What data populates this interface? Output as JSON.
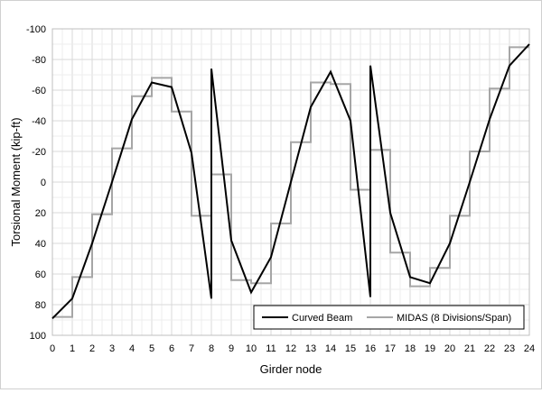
{
  "chart_data": {
    "type": "line",
    "title": "",
    "xlabel": "Girder node",
    "ylabel": "Torsional Moment (kip-ft)",
    "xlim": [
      0,
      24
    ],
    "ylim": [
      100,
      -100
    ],
    "y_axis_reversed": true,
    "x_ticks": [
      "0",
      "1",
      "2",
      "3",
      "4",
      "5",
      "6",
      "7",
      "8",
      "9",
      "10",
      "11",
      "12",
      "13",
      "14",
      "15",
      "16",
      "17",
      "18",
      "19",
      "20",
      "21",
      "22",
      "23",
      "24"
    ],
    "y_ticks": [
      "-100",
      "-80",
      "-60",
      "-40",
      "-20",
      "0",
      "20",
      "40",
      "60",
      "80",
      "100"
    ],
    "grid": true,
    "legend_position": "bottom-right",
    "series": [
      {
        "name": "Curved Beam",
        "color": "#000000",
        "x": [
          0,
          1,
          2,
          3,
          4,
          5,
          6,
          7,
          8,
          8,
          9,
          10,
          11,
          12,
          13,
          14,
          15,
          16,
          16,
          17,
          18,
          19,
          20,
          21,
          22,
          23,
          24
        ],
        "y": [
          89,
          76,
          40,
          0,
          -41,
          -65,
          -62,
          -19,
          76,
          -74,
          38,
          72,
          49,
          0,
          -49,
          -72,
          -40,
          75,
          -76,
          20,
          62,
          66,
          40,
          0,
          -41,
          -76,
          -90
        ]
      },
      {
        "name": "MIDAS (8 Divisions/Span)",
        "color": "#a6a6a6",
        "step": true,
        "x": [
          0,
          1,
          1,
          2,
          2,
          3,
          3,
          4,
          4,
          5,
          5,
          6,
          6,
          7,
          7,
          8,
          8,
          9,
          9,
          10,
          10,
          11,
          11,
          12,
          12,
          13,
          13,
          14,
          14,
          15,
          15,
          16,
          16,
          17,
          17,
          18,
          18,
          19,
          19,
          20,
          20,
          21,
          21,
          22,
          22,
          23,
          23,
          24
        ],
        "y": [
          88,
          88,
          62,
          62,
          21,
          21,
          -22,
          -22,
          -56,
          -56,
          -68,
          -68,
          -46,
          -46,
          22,
          22,
          -5,
          -5,
          64,
          64,
          66,
          66,
          27,
          27,
          -26,
          -26,
          -65,
          -65,
          -64,
          -64,
          5,
          5,
          -21,
          -21,
          46,
          46,
          68,
          68,
          56,
          56,
          22,
          22,
          -20,
          -20,
          -61,
          -61,
          -88,
          -88
        ]
      }
    ]
  }
}
